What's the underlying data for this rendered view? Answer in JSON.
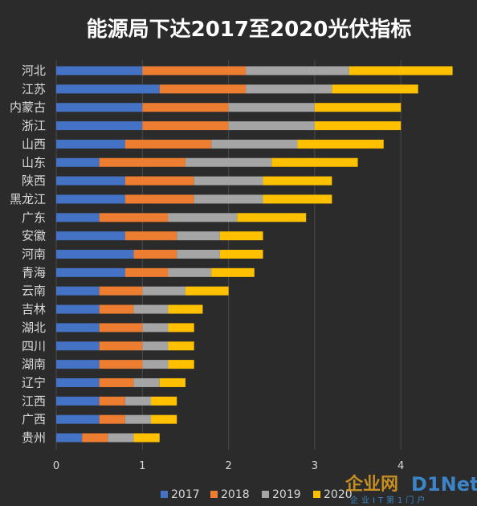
{
  "watermark": {
    "brand_cn": "企业网",
    "brand_en": "D1Net",
    "tagline": "企业IT第1门户"
  },
  "chart_data": {
    "type": "bar",
    "orientation": "horizontal",
    "stacked": true,
    "title": "能源局下达2017至2020光伏指标",
    "categories": [
      "河北",
      "江苏",
      "内蒙古",
      "浙江",
      "山西",
      "山东",
      "陕西",
      "黑龙江",
      "广东",
      "安徽",
      "河南",
      "青海",
      "云南",
      "吉林",
      "湖北",
      "四川",
      "湖南",
      "辽宁",
      "江西",
      "广西",
      "贵州"
    ],
    "series": [
      {
        "name": "2017",
        "color": "#4472c4",
        "values": [
          1.0,
          1.2,
          1.0,
          1.0,
          0.8,
          0.5,
          0.8,
          0.8,
          0.5,
          0.8,
          0.9,
          0.8,
          0.5,
          0.5,
          0.5,
          0.5,
          0.5,
          0.5,
          0.5,
          0.5,
          0.3
        ]
      },
      {
        "name": "2018",
        "color": "#ed7d31",
        "values": [
          1.2,
          1.0,
          1.0,
          1.0,
          1.0,
          1.0,
          0.8,
          0.8,
          0.8,
          0.6,
          0.5,
          0.5,
          0.5,
          0.4,
          0.5,
          0.5,
          0.5,
          0.4,
          0.3,
          0.3,
          0.3
        ]
      },
      {
        "name": "2019",
        "color": "#a5a5a5",
        "values": [
          1.2,
          1.0,
          1.0,
          1.0,
          1.0,
          1.0,
          0.8,
          0.8,
          0.8,
          0.5,
          0.5,
          0.5,
          0.5,
          0.4,
          0.3,
          0.3,
          0.3,
          0.3,
          0.3,
          0.3,
          0.3
        ]
      },
      {
        "name": "2020",
        "color": "#ffc000",
        "values": [
          1.2,
          1.0,
          1.0,
          1.0,
          1.0,
          1.0,
          0.8,
          0.8,
          0.8,
          0.5,
          0.5,
          0.5,
          0.5,
          0.4,
          0.3,
          0.3,
          0.3,
          0.3,
          0.3,
          0.3,
          0.3
        ]
      }
    ],
    "xlim": [
      0,
      4.5
    ],
    "xticks": [
      0,
      1,
      2,
      3,
      4
    ],
    "grid": true,
    "legend": "bottom"
  }
}
